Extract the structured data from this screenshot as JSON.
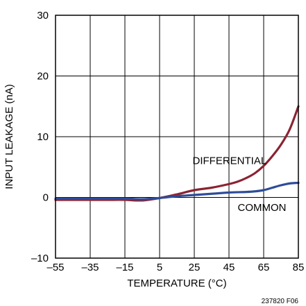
{
  "chart_data": {
    "type": "line",
    "xlabel": "TEMPERATURE (°C)",
    "ylabel": "INPUT LEAKAGE (nA)",
    "xlim": [
      -55,
      85
    ],
    "ylim": [
      -10,
      30
    ],
    "x_ticks": [
      -55,
      -35,
      -15,
      5,
      25,
      45,
      65,
      85
    ],
    "x_tick_labels": [
      "–55",
      "–35",
      "–15",
      "5",
      "25",
      "45",
      "65",
      "85"
    ],
    "y_ticks": [
      -10,
      0,
      10,
      20,
      30
    ],
    "y_tick_labels": [
      "–10",
      "0",
      "10",
      "20",
      "30"
    ],
    "grid": true,
    "figure_id": "237820 F06",
    "series": [
      {
        "name": "DIFFERENTIAL",
        "color": "#8b2332",
        "x": [
          -55,
          -35,
          -25,
          -15,
          -5,
          5,
          15,
          25,
          35,
          45,
          50,
          55,
          60,
          65,
          70,
          75,
          80,
          85
        ],
        "y": [
          -0.4,
          -0.4,
          -0.4,
          -0.4,
          -0.5,
          -0.1,
          0.5,
          1.2,
          1.6,
          2.2,
          2.6,
          3.2,
          4.0,
          5.2,
          6.8,
          8.7,
          11.2,
          15.0
        ]
      },
      {
        "name": "COMMON",
        "color": "#2e4c9a",
        "x": [
          -55,
          -35,
          -15,
          -5,
          5,
          15,
          25,
          35,
          45,
          55,
          60,
          65,
          70,
          75,
          80,
          85
        ],
        "y": [
          -0.2,
          -0.2,
          -0.2,
          -0.3,
          -0.1,
          0.2,
          0.4,
          0.6,
          0.8,
          0.9,
          1.0,
          1.2,
          1.6,
          2.0,
          2.3,
          2.4
        ]
      }
    ],
    "annotations": [
      {
        "text": "DIFFERENTIAL",
        "x": 24,
        "y": 5.5
      },
      {
        "text": "COMMON",
        "x": 50,
        "y": -2.2
      }
    ]
  }
}
